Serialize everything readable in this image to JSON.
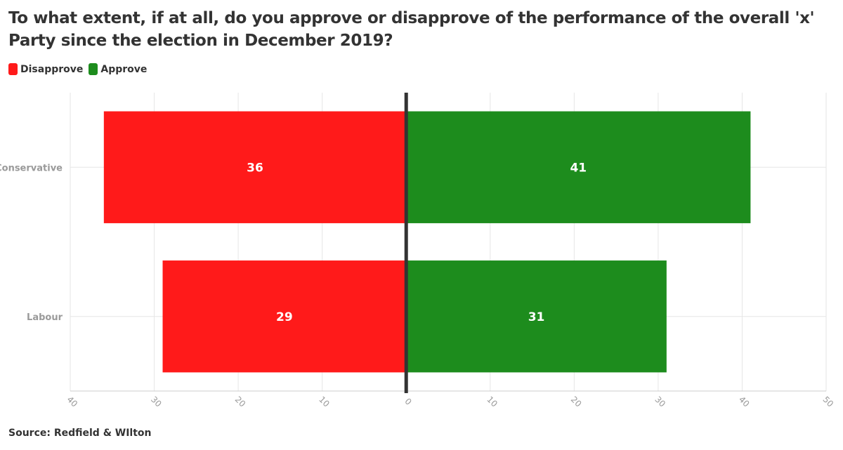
{
  "colors": {
    "disapprove": "#ff1a1a",
    "approve": "#1d8c1d",
    "axis": "#333333",
    "grid": "#e6e6e6"
  },
  "chart_data": {
    "type": "bar",
    "orientation": "horizontal-diverging",
    "title": "To what extent, if at all, do you approve or disapprove of the performance of the overall 'x' Party since the election in December 2019?",
    "categories": [
      "Conservative",
      "Labour"
    ],
    "series": [
      {
        "name": "Disapprove",
        "values": [
          36,
          29
        ],
        "side": "left"
      },
      {
        "name": "Approve",
        "values": [
          41,
          31
        ],
        "side": "right"
      }
    ],
    "xlim": [
      -40,
      50
    ],
    "xticks": [
      -40,
      -30,
      -20,
      -10,
      0,
      10,
      20,
      30,
      40,
      50
    ],
    "tick_labels": [
      "40",
      "30",
      "20",
      "10",
      "0",
      "10",
      "20",
      "30",
      "40",
      "50"
    ],
    "source": "Source: Redfield & WIlton",
    "legend_position": "top-left",
    "grid": true
  }
}
